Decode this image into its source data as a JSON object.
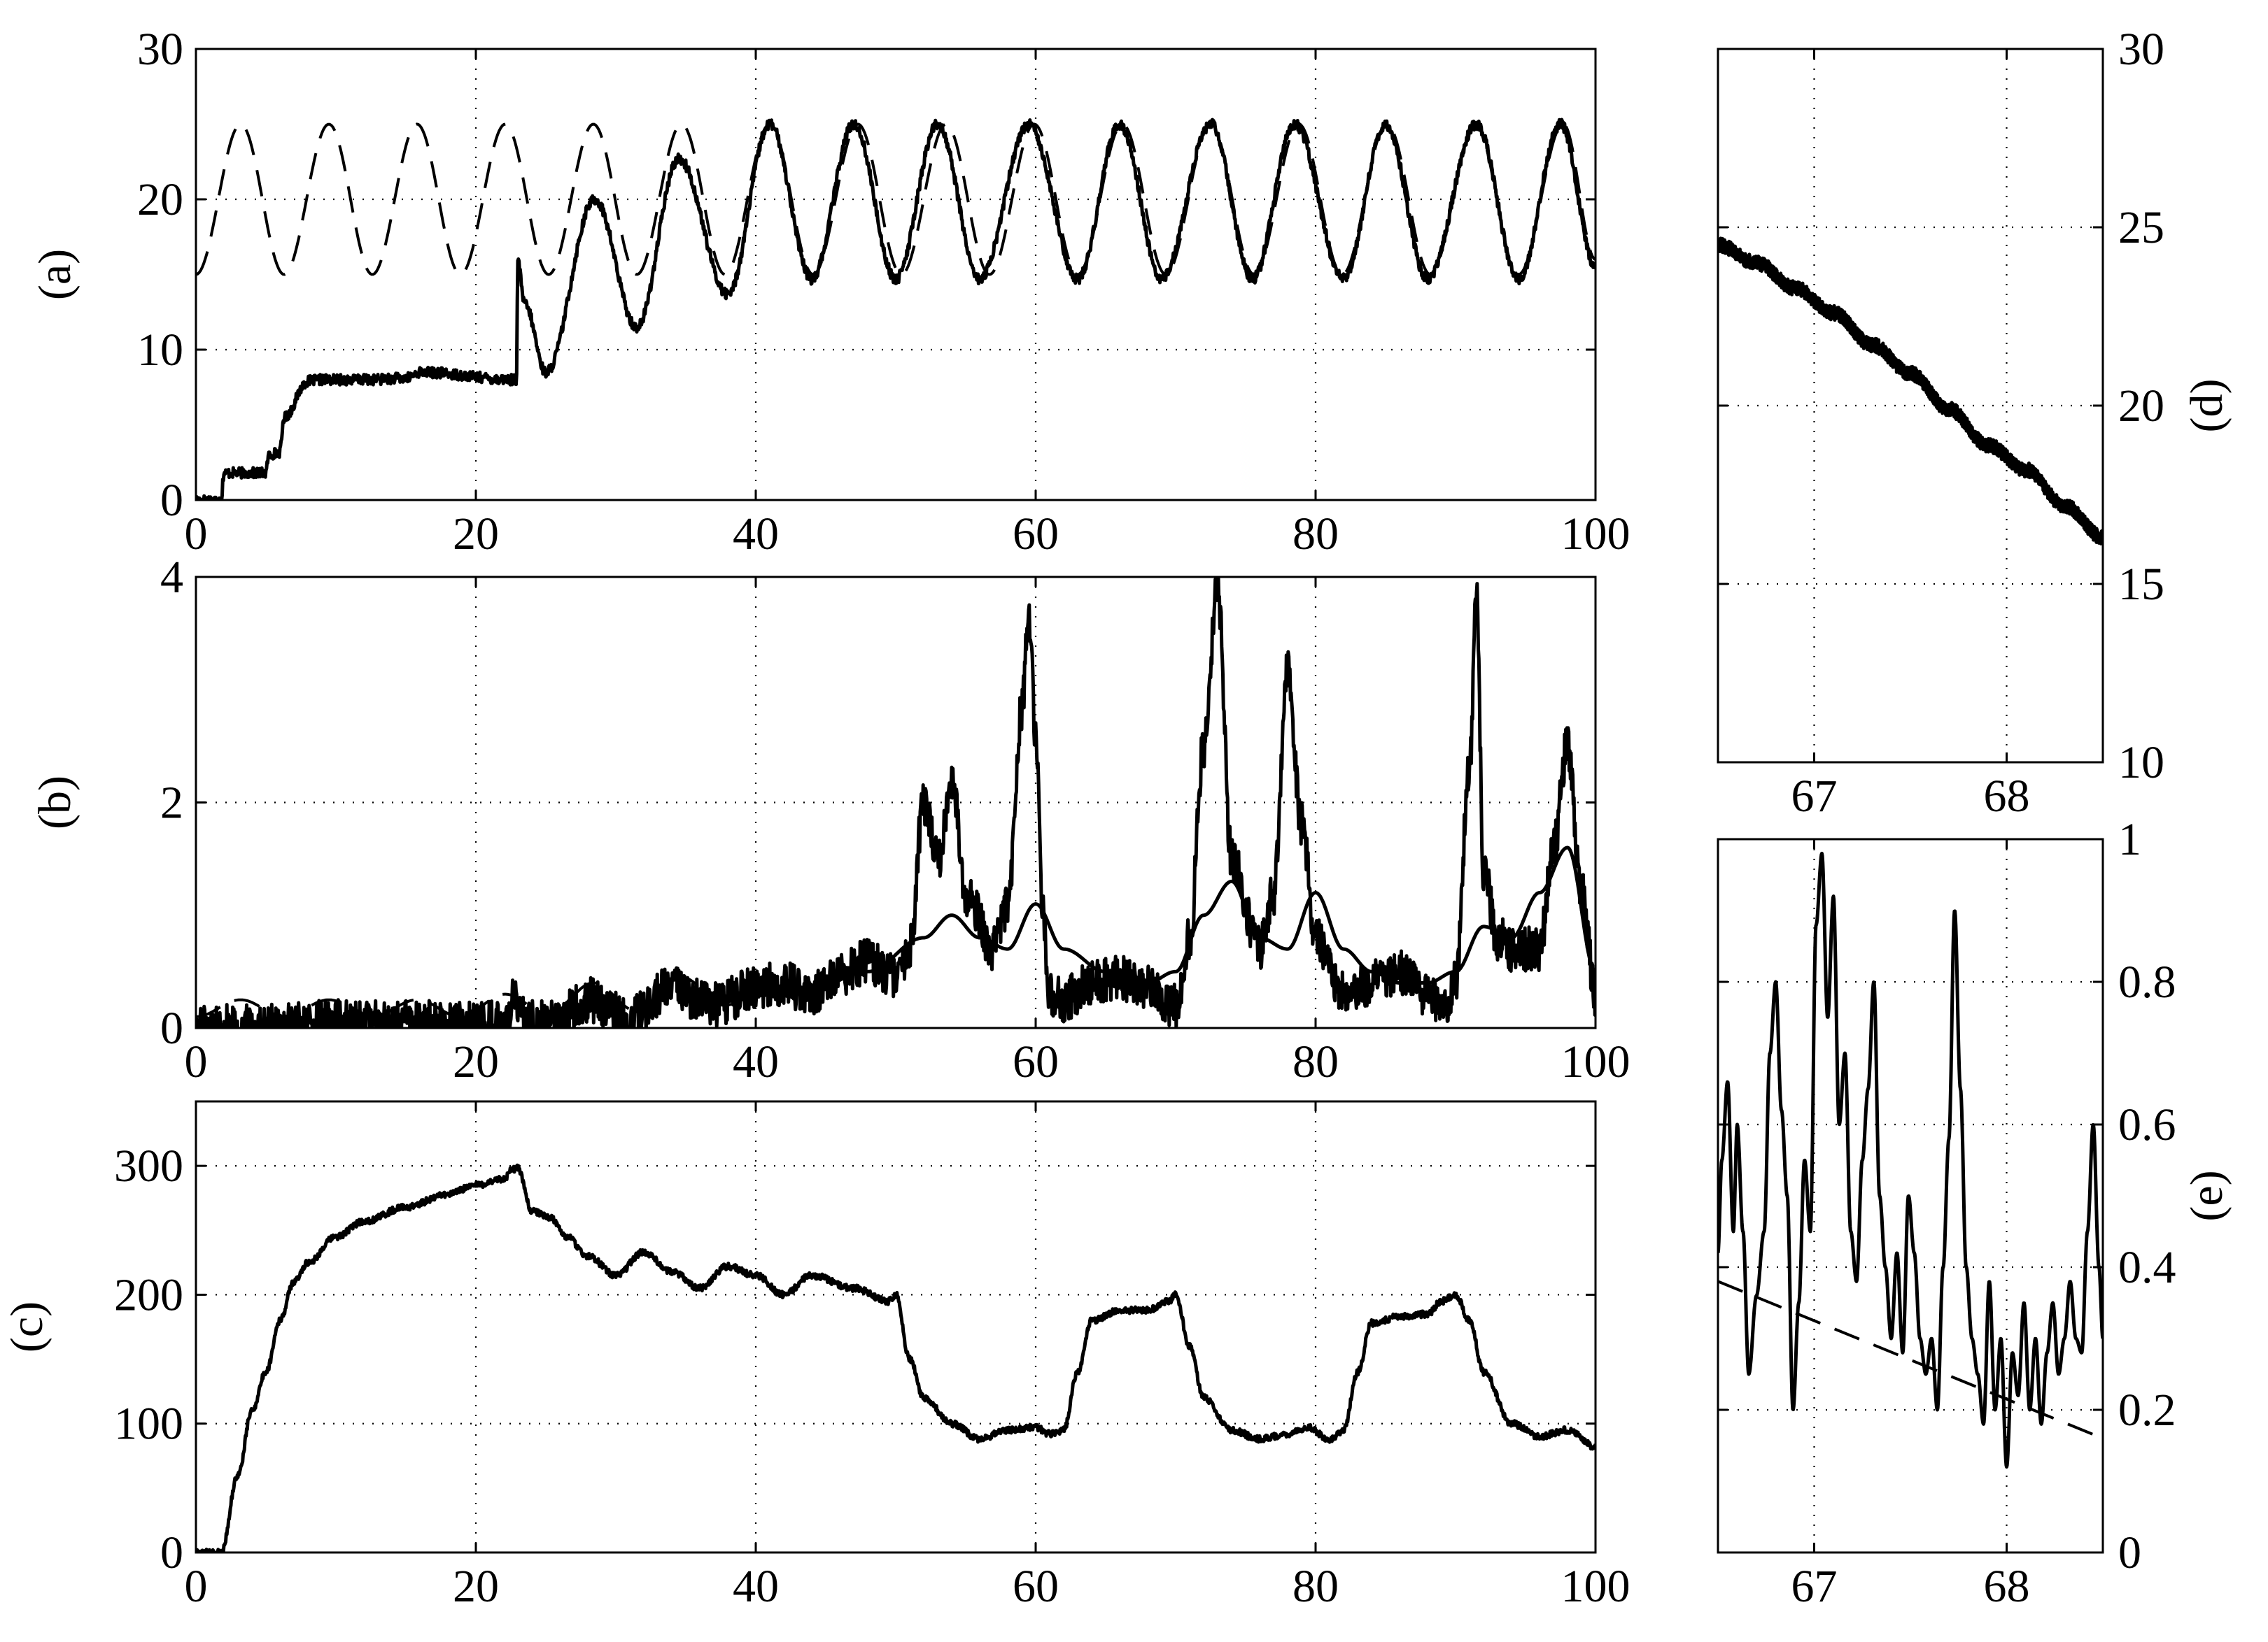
{
  "chart_data": [
    {
      "id": "a",
      "type": "line",
      "panel_label": "(a)",
      "xlim": [
        0,
        100
      ],
      "ylim": [
        0,
        30
      ],
      "xticks": [
        0,
        20,
        40,
        60,
        80,
        100
      ],
      "yticks": [
        0,
        10,
        20,
        30
      ],
      "grid": true,
      "series": [
        {
          "style": "solid",
          "noise": 0.35,
          "x": [
            0,
            1.8,
            2,
            5,
            5.2,
            6,
            6.3,
            8,
            9,
            12,
            15,
            16,
            22.9,
            23,
            23.5,
            25,
            28.5,
            31.5,
            34.5,
            38,
            41,
            44,
            47,
            50,
            53,
            56,
            59.5,
            63,
            66,
            69,
            72.5,
            75.5,
            78.5,
            82,
            85,
            88,
            91.5,
            94.5,
            97.5,
            100
          ],
          "y": [
            0,
            0,
            1.8,
            1.8,
            3,
            3.2,
            5.5,
            7.9,
            8,
            8,
            8.1,
            8.5,
            8,
            15.8,
            13,
            8.5,
            20,
            11.5,
            22.7,
            13.7,
            25,
            14.7,
            25,
            14.7,
            25,
            14.7,
            25,
            14.7,
            25,
            14.7,
            25,
            14.7,
            25,
            14.7,
            25,
            14.7,
            25,
            14.7,
            25,
            15.5
          ]
        },
        {
          "style": "dashed",
          "x": [
            0,
            3.2,
            6.3,
            9.5,
            12.6,
            15.8,
            18.9,
            22.1,
            25.2,
            28.4,
            31.5,
            34.7,
            37.8,
            41,
            44.1,
            47.3,
            50.4,
            53.6,
            56.7,
            59.9,
            63,
            66.2,
            69.3,
            72.5,
            75.6,
            78.8,
            81.9,
            85.1,
            88.2,
            91.4,
            94.5,
            97.7,
            100
          ],
          "y": [
            15,
            25,
            15,
            25,
            15,
            25,
            15,
            25,
            15,
            25,
            15,
            25,
            15,
            25,
            15,
            25,
            15,
            25,
            15,
            25,
            15,
            25,
            15,
            25,
            15,
            25,
            15,
            25,
            15,
            25,
            15,
            25,
            16
          ]
        }
      ]
    },
    {
      "id": "b",
      "type": "line",
      "panel_label": "(b)",
      "xlim": [
        0,
        100
      ],
      "ylim": [
        0,
        4
      ],
      "xticks": [
        0,
        20,
        40,
        60,
        80,
        100
      ],
      "yticks": [
        0,
        2,
        4
      ],
      "grid": true,
      "series": [
        {
          "style": "solid",
          "noise": 0.2,
          "x": [
            0,
            2,
            5,
            10,
            15,
            20,
            22.5,
            22.7,
            23,
            25,
            28,
            31,
            34,
            37,
            40,
            42,
            44,
            46,
            48,
            50,
            51,
            52,
            53,
            54,
            55,
            57,
            58,
            59,
            59.5,
            60,
            60.5,
            61,
            62,
            64,
            66,
            68,
            70,
            71,
            72,
            73,
            74,
            76,
            77,
            78,
            79,
            80,
            82,
            84,
            86,
            88,
            89,
            90,
            91,
            91.5,
            92,
            93,
            94,
            96,
            97,
            98,
            99,
            100
          ],
          "y": [
            0,
            0.02,
            0.02,
            0.05,
            0.05,
            0.05,
            0.05,
            0.35,
            0.08,
            0.05,
            0.25,
            0.1,
            0.35,
            0.2,
            0.35,
            0.4,
            0.3,
            0.45,
            0.6,
            0.45,
            0.7,
            2,
            1.5,
            2.2,
            1.2,
            0.7,
            1.1,
            2.8,
            3.7,
            2.6,
            1,
            0.3,
            0.25,
            0.4,
            0.45,
            0.35,
            0.2,
            0.8,
            2.5,
            3.9,
            1.5,
            0.7,
            1.2,
            3.2,
            1.8,
            0.8,
            0.3,
            0.4,
            0.5,
            0.3,
            0.15,
            0.4,
            2.3,
            3.9,
            1.4,
            0.8,
            0.7,
            0.7,
            1.6,
            2.5,
            1.2,
            0.3
          ]
        },
        {
          "style": "dashed",
          "x": [
            0,
            3.2,
            6.3,
            9.5,
            12.6,
            15.8,
            18.9,
            22.1,
            25.2,
            28.4,
            31.5,
            34.7,
            37.8,
            41
          ],
          "y": [
            0.1,
            0.25,
            0.1,
            0.25,
            0.1,
            0.25,
            0.1,
            0.3,
            0.12,
            0.4,
            0.15,
            0.45,
            0.2,
            0.45
          ]
        },
        {
          "style": "solid-thin",
          "x": [
            40,
            44,
            48,
            52,
            54,
            56,
            58,
            60,
            62,
            65,
            68,
            70,
            72,
            74,
            76,
            78,
            80,
            82,
            84,
            86,
            88,
            90,
            92,
            94,
            96,
            98,
            100
          ],
          "y": [
            0.35,
            0.35,
            0.5,
            0.8,
            1,
            0.8,
            0.7,
            1.1,
            0.7,
            0.5,
            0.4,
            0.5,
            1,
            1.3,
            0.8,
            0.7,
            1.2,
            0.7,
            0.5,
            0.4,
            0.4,
            0.5,
            0.9,
            0.8,
            1.2,
            1.6,
            0.5
          ]
        }
      ]
    },
    {
      "id": "c",
      "type": "line",
      "panel_label": "(c)",
      "xlim": [
        0,
        100
      ],
      "ylim": [
        0,
        350
      ],
      "xticks": [
        0,
        20,
        40,
        60,
        80,
        100
      ],
      "yticks": [
        0,
        100,
        200,
        300
      ],
      "grid": true,
      "series": [
        {
          "style": "solid",
          "noise": 2.5,
          "x": [
            0,
            1.8,
            3,
            4,
            5,
            6,
            7,
            8,
            10,
            12,
            15,
            18,
            20,
            22,
            22.6,
            23,
            24,
            25.3,
            26.5,
            28,
            30,
            32,
            34,
            36,
            38,
            40,
            42,
            44,
            47,
            49.5,
            50,
            51,
            52,
            54,
            56,
            58,
            60,
            61,
            62,
            63,
            64,
            66,
            68,
            69.5,
            70,
            71,
            72,
            74,
            76,
            78,
            79.5,
            81,
            82,
            83,
            84,
            86,
            88,
            89,
            90,
            91,
            92,
            94,
            96,
            98,
            100
          ],
          "y": [
            0,
            0,
            60,
            110,
            140,
            180,
            210,
            225,
            245,
            257,
            268,
            278,
            285,
            290,
            297,
            298,
            265,
            260,
            245,
            230,
            215,
            233,
            218,
            205,
            222,
            215,
            200,
            215,
            205,
            195,
            200,
            150,
            120,
            100,
            88,
            95,
            97,
            92,
            95,
            140,
            180,
            188,
            188,
            195,
            200,
            160,
            120,
            95,
            88,
            92,
            97,
            87,
            95,
            140,
            178,
            183,
            185,
            195,
            200,
            180,
            140,
            100,
            90,
            95,
            82
          ]
        }
      ]
    },
    {
      "id": "d",
      "type": "line",
      "panel_label": "(d)",
      "xlim": [
        66.5,
        68.5
      ],
      "ylim": [
        10,
        30
      ],
      "xticks": [
        67,
        68
      ],
      "yticks": [
        10,
        15,
        20,
        25,
        30
      ],
      "grid": true,
      "series": [
        {
          "style": "solid",
          "noise": 0.2,
          "x": [
            66.5,
            66.7,
            66.9,
            67.1,
            67.3,
            67.5,
            67.7,
            67.9,
            68.1,
            68.3,
            68.5
          ],
          "y": [
            24.5,
            24,
            23.3,
            22.6,
            21.7,
            20.9,
            19.9,
            18.9,
            18.2,
            17.2,
            16.3
          ]
        }
      ]
    },
    {
      "id": "e",
      "type": "line",
      "panel_label": "(e)",
      "xlim": [
        66.5,
        68.5
      ],
      "ylim": [
        0,
        1
      ],
      "xticks": [
        67,
        68
      ],
      "yticks": [
        0,
        0.2,
        0.4,
        0.6,
        0.8,
        1
      ],
      "grid": true,
      "series": [
        {
          "style": "solid",
          "x": [
            66.5,
            66.52,
            66.55,
            66.58,
            66.6,
            66.63,
            66.66,
            66.7,
            66.74,
            66.77,
            66.8,
            66.83,
            66.86,
            66.89,
            66.92,
            66.95,
            66.98,
            67.01,
            67.04,
            67.07,
            67.1,
            67.13,
            67.16,
            67.19,
            67.22,
            67.25,
            67.28,
            67.31,
            67.34,
            67.37,
            67.4,
            67.43,
            67.46,
            67.49,
            67.52,
            67.55,
            67.58,
            67.61,
            67.64,
            67.67,
            67.7,
            67.73,
            67.76,
            67.79,
            67.82,
            67.85,
            67.88,
            67.91,
            67.94,
            67.97,
            68,
            68.03,
            68.06,
            68.09,
            68.12,
            68.15,
            68.18,
            68.21,
            68.24,
            68.27,
            68.3,
            68.33,
            68.36,
            68.39,
            68.42,
            68.45,
            68.48,
            68.5
          ],
          "y": [
            0.42,
            0.55,
            0.66,
            0.45,
            0.6,
            0.45,
            0.25,
            0.36,
            0.45,
            0.7,
            0.8,
            0.62,
            0.5,
            0.2,
            0.35,
            0.55,
            0.45,
            0.88,
            0.98,
            0.75,
            0.92,
            0.6,
            0.7,
            0.45,
            0.38,
            0.55,
            0.65,
            0.8,
            0.5,
            0.4,
            0.3,
            0.42,
            0.28,
            0.5,
            0.42,
            0.3,
            0.25,
            0.3,
            0.2,
            0.4,
            0.58,
            0.9,
            0.65,
            0.4,
            0.3,
            0.25,
            0.18,
            0.38,
            0.2,
            0.3,
            0.12,
            0.28,
            0.22,
            0.35,
            0.2,
            0.3,
            0.18,
            0.28,
            0.35,
            0.25,
            0.3,
            0.38,
            0.3,
            0.28,
            0.45,
            0.6,
            0.4,
            0.3
          ]
        },
        {
          "style": "dashed",
          "x": [
            66.5,
            68.5
          ],
          "y": [
            0.38,
            0.16
          ]
        }
      ]
    }
  ]
}
